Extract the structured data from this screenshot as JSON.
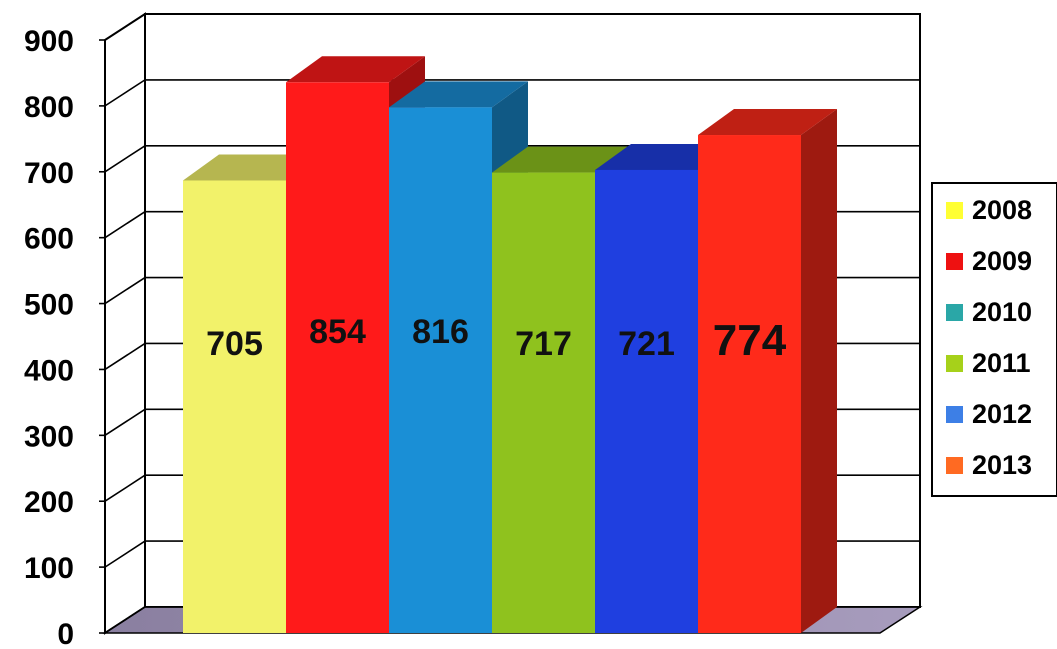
{
  "chart_data": {
    "type": "bar",
    "title": "",
    "xlabel": "",
    "ylabel": "",
    "categories": [
      "2008",
      "2009",
      "2010",
      "2011",
      "2012",
      "2013"
    ],
    "values": [
      705,
      854,
      816,
      717,
      721,
      774
    ],
    "data_labels": [
      "705",
      "854",
      "816",
      "717",
      "721",
      "774"
    ],
    "ylim": [
      0,
      900
    ],
    "yticks": [
      "0",
      "100",
      "200",
      "300",
      "400",
      "500",
      "600",
      "700",
      "800",
      "900"
    ],
    "grid": true,
    "three_d": true,
    "legend_position": "right",
    "bar_colors": [
      "#f2f26a",
      "#ff1a1a",
      "#1a8fd6",
      "#8fc21e",
      "#1f3fe0",
      "#ff2a1a"
    ],
    "legend": [
      {
        "label": "2008",
        "color": "#ffff33"
      },
      {
        "label": "2009",
        "color": "#ee1111"
      },
      {
        "label": "2010",
        "color": "#2aa7a7"
      },
      {
        "label": "2011",
        "color": "#a6d11a"
      },
      {
        "label": "2012",
        "color": "#3d7fe6"
      },
      {
        "label": "2013",
        "color": "#ff6a22"
      }
    ]
  }
}
